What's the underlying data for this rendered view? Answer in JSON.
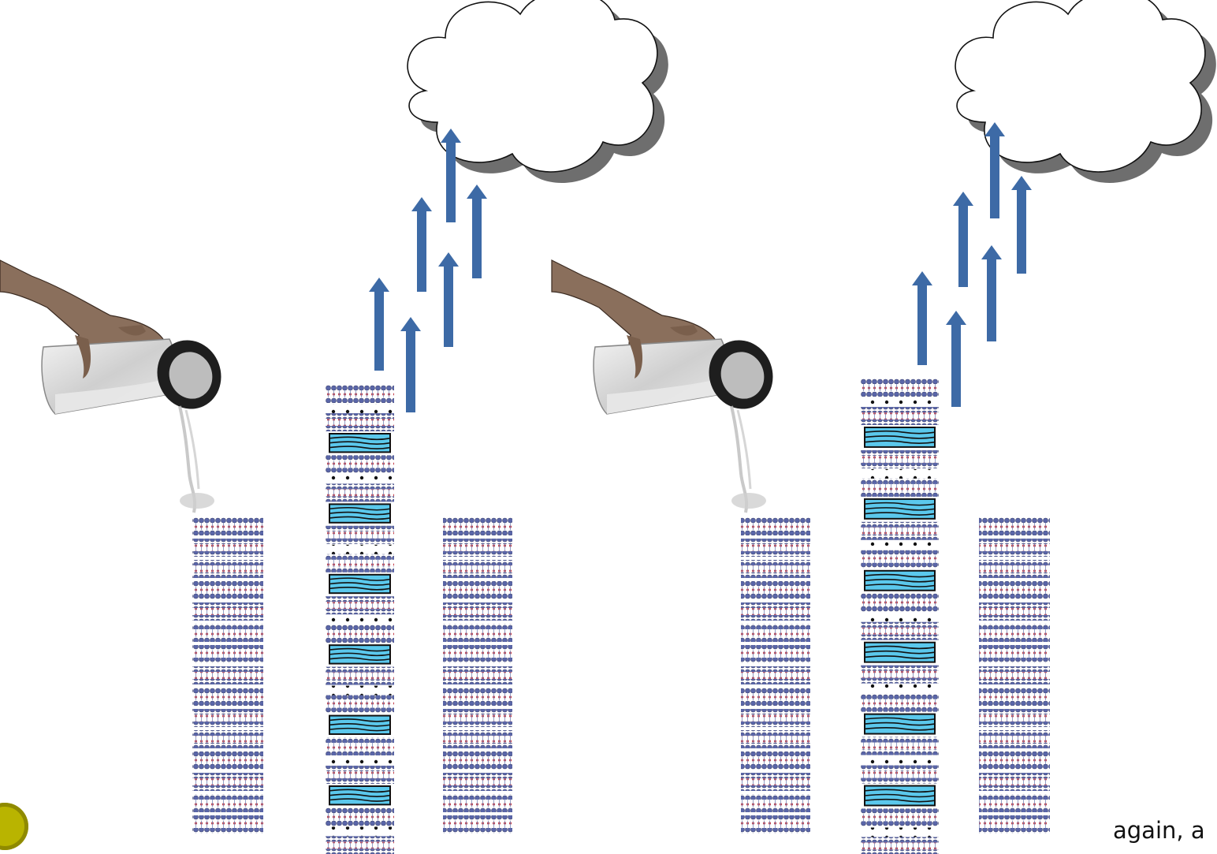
{
  "caption": {
    "text": "again, a"
  },
  "colors": {
    "arrow": "#3d6aa6",
    "water": "#5bc8ec",
    "cloud_shadow": "#6e6e6e",
    "atom_blue": "#5a66a8",
    "atom_red": "#c4404a",
    "bullet": "#b9b400"
  },
  "icons": {
    "cloud": "cloud-icon",
    "arrow": "arrow-up-icon",
    "bottle": "pouring-bottle-hand-image",
    "bullet": "bullet-dot-icon"
  },
  "panels": [
    {
      "name": "panel-1",
      "stacks": [
        {
          "name": "dry-clay-stack",
          "water_layers": 0
        },
        {
          "name": "hydrated-clay-stack",
          "water_layers": 6
        },
        {
          "name": "dry-clay-stack",
          "water_layers": 0
        }
      ],
      "evaporation_arrows": 6
    },
    {
      "name": "panel-2",
      "stacks": [
        {
          "name": "dry-clay-stack",
          "water_layers": 0
        },
        {
          "name": "hydrated-clay-stack",
          "water_layers": 6
        },
        {
          "name": "dry-clay-stack",
          "water_layers": 0
        }
      ],
      "evaporation_arrows": 6
    }
  ]
}
